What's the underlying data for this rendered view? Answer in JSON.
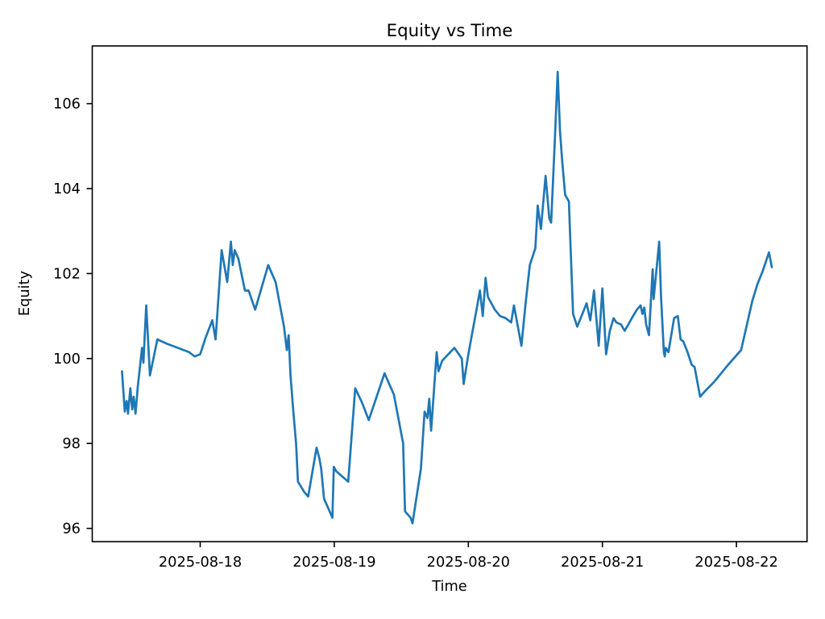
{
  "chart_data": {
    "type": "line",
    "title": "Equity vs Time",
    "xlabel": "Time",
    "ylabel": "Equity",
    "line_color": "#1f77b4",
    "background_color": "#ffffff",
    "grid": false,
    "legend": null,
    "y_ticks": [
      96,
      98,
      100,
      102,
      104,
      106
    ],
    "x_ticks": [
      "2025-08-18",
      "2025-08-19",
      "2025-08-20",
      "2025-08-21",
      "2025-08-22"
    ],
    "ylim": [
      95.7,
      107.4
    ],
    "xlim": [
      "2025-08-17T04:40",
      "2025-08-22T12:40"
    ],
    "series": [
      {
        "name": "Equity",
        "points": [
          [
            "2025-08-17T10:00",
            99.7
          ],
          [
            "2025-08-17T10:30",
            98.75
          ],
          [
            "2025-08-17T10:50",
            99.0
          ],
          [
            "2025-08-17T11:05",
            98.7
          ],
          [
            "2025-08-17T11:30",
            99.3
          ],
          [
            "2025-08-17T11:50",
            98.8
          ],
          [
            "2025-08-17T12:05",
            99.1
          ],
          [
            "2025-08-17T12:25",
            98.7
          ],
          [
            "2025-08-17T12:50",
            99.35
          ],
          [
            "2025-08-17T13:15",
            99.85
          ],
          [
            "2025-08-17T13:35",
            100.25
          ],
          [
            "2025-08-17T13:50",
            99.9
          ],
          [
            "2025-08-17T14:20",
            101.25
          ],
          [
            "2025-08-17T15:00",
            99.6
          ],
          [
            "2025-08-17T16:20",
            100.45
          ],
          [
            "2025-08-17T18:00",
            100.35
          ],
          [
            "2025-08-17T20:00",
            100.25
          ],
          [
            "2025-08-17T22:00",
            100.15
          ],
          [
            "2025-08-17T23:00",
            100.05
          ],
          [
            "2025-08-18T00:00",
            100.1
          ],
          [
            "2025-08-18T01:00",
            100.5
          ],
          [
            "2025-08-18T02:10",
            100.9
          ],
          [
            "2025-08-18T02:45",
            100.45
          ],
          [
            "2025-08-18T03:50",
            102.55
          ],
          [
            "2025-08-18T04:50",
            101.8
          ],
          [
            "2025-08-18T05:30",
            102.75
          ],
          [
            "2025-08-18T05:50",
            102.2
          ],
          [
            "2025-08-18T06:10",
            102.55
          ],
          [
            "2025-08-18T06:50",
            102.35
          ],
          [
            "2025-08-18T08:00",
            101.6
          ],
          [
            "2025-08-18T08:40",
            101.6
          ],
          [
            "2025-08-18T09:50",
            101.15
          ],
          [
            "2025-08-18T12:10",
            102.2
          ],
          [
            "2025-08-18T13:30",
            101.8
          ],
          [
            "2025-08-18T15:00",
            100.75
          ],
          [
            "2025-08-18T15:30",
            100.2
          ],
          [
            "2025-08-18T15:50",
            100.55
          ],
          [
            "2025-08-18T16:10",
            99.6
          ],
          [
            "2025-08-18T16:40",
            98.75
          ],
          [
            "2025-08-18T17:10",
            98.0
          ],
          [
            "2025-08-18T17:30",
            97.1
          ],
          [
            "2025-08-18T18:40",
            96.85
          ],
          [
            "2025-08-18T19:20",
            96.75
          ],
          [
            "2025-08-18T20:50",
            97.9
          ],
          [
            "2025-08-18T21:20",
            97.65
          ],
          [
            "2025-08-18T21:40",
            97.4
          ],
          [
            "2025-08-18T22:10",
            96.7
          ],
          [
            "2025-08-18T23:40",
            96.25
          ],
          [
            "2025-08-18T23:55",
            97.45
          ],
          [
            "2025-08-19T00:20",
            97.35
          ],
          [
            "2025-08-19T02:30",
            97.1
          ],
          [
            "2025-08-19T03:45",
            99.3
          ],
          [
            "2025-08-19T05:00",
            98.95
          ],
          [
            "2025-08-19T06:10",
            98.55
          ],
          [
            "2025-08-19T09:00",
            99.65
          ],
          [
            "2025-08-19T10:40",
            99.15
          ],
          [
            "2025-08-19T12:20",
            98.0
          ],
          [
            "2025-08-19T12:40",
            96.4
          ],
          [
            "2025-08-19T13:40",
            96.25
          ],
          [
            "2025-08-19T14:00",
            96.12
          ],
          [
            "2025-08-19T15:30",
            97.4
          ],
          [
            "2025-08-19T16:10",
            98.75
          ],
          [
            "2025-08-19T16:40",
            98.6
          ],
          [
            "2025-08-19T17:00",
            99.05
          ],
          [
            "2025-08-19T17:20",
            98.3
          ],
          [
            "2025-08-19T18:20",
            100.15
          ],
          [
            "2025-08-19T18:40",
            99.7
          ],
          [
            "2025-08-19T19:20",
            99.95
          ],
          [
            "2025-08-19T21:30",
            100.25
          ],
          [
            "2025-08-19T22:50",
            100.0
          ],
          [
            "2025-08-19T23:10",
            99.4
          ],
          [
            "2025-08-20T00:00",
            100.1
          ],
          [
            "2025-08-20T01:40",
            101.3
          ],
          [
            "2025-08-20T02:05",
            101.6
          ],
          [
            "2025-08-20T02:35",
            101.0
          ],
          [
            "2025-08-20T03:05",
            101.9
          ],
          [
            "2025-08-20T03:30",
            101.45
          ],
          [
            "2025-08-20T04:45",
            101.15
          ],
          [
            "2025-08-20T05:40",
            101.0
          ],
          [
            "2025-08-20T06:40",
            100.95
          ],
          [
            "2025-08-20T07:40",
            100.85
          ],
          [
            "2025-08-20T08:10",
            101.25
          ],
          [
            "2025-08-20T09:30",
            100.3
          ],
          [
            "2025-08-20T10:15",
            101.3
          ],
          [
            "2025-08-20T11:00",
            102.2
          ],
          [
            "2025-08-20T12:00",
            102.6
          ],
          [
            "2025-08-20T12:25",
            103.6
          ],
          [
            "2025-08-20T13:00",
            103.05
          ],
          [
            "2025-08-20T13:50",
            104.3
          ],
          [
            "2025-08-20T14:30",
            103.3
          ],
          [
            "2025-08-20T14:50",
            103.2
          ],
          [
            "2025-08-20T15:30",
            105.2
          ],
          [
            "2025-08-20T16:00",
            106.75
          ],
          [
            "2025-08-20T16:25",
            105.35
          ],
          [
            "2025-08-20T16:50",
            104.6
          ],
          [
            "2025-08-20T17:20",
            103.85
          ],
          [
            "2025-08-20T18:00",
            103.7
          ],
          [
            "2025-08-20T18:45",
            101.05
          ],
          [
            "2025-08-20T19:30",
            100.75
          ],
          [
            "2025-08-20T21:10",
            101.3
          ],
          [
            "2025-08-20T21:50",
            100.9
          ],
          [
            "2025-08-20T22:30",
            101.6
          ],
          [
            "2025-08-20T23:20",
            100.3
          ],
          [
            "2025-08-21T00:00",
            101.65
          ],
          [
            "2025-08-21T00:40",
            100.1
          ],
          [
            "2025-08-21T01:20",
            100.65
          ],
          [
            "2025-08-21T02:00",
            100.95
          ],
          [
            "2025-08-21T02:30",
            100.85
          ],
          [
            "2025-08-21T03:20",
            100.8
          ],
          [
            "2025-08-21T04:00",
            100.65
          ],
          [
            "2025-08-21T05:30",
            101.0
          ],
          [
            "2025-08-21T06:10",
            101.15
          ],
          [
            "2025-08-21T06:50",
            101.25
          ],
          [
            "2025-08-21T07:10",
            101.05
          ],
          [
            "2025-08-21T07:30",
            101.2
          ],
          [
            "2025-08-21T07:50",
            100.8
          ],
          [
            "2025-08-21T08:20",
            100.55
          ],
          [
            "2025-08-21T09:00",
            102.1
          ],
          [
            "2025-08-21T09:10",
            101.4
          ],
          [
            "2025-08-21T10:10",
            102.75
          ],
          [
            "2025-08-21T10:30",
            101.45
          ],
          [
            "2025-08-21T11:00",
            100.15
          ],
          [
            "2025-08-21T11:10",
            100.05
          ],
          [
            "2025-08-21T11:20",
            100.25
          ],
          [
            "2025-08-21T11:50",
            100.15
          ],
          [
            "2025-08-21T12:50",
            100.95
          ],
          [
            "2025-08-21T13:30",
            101.0
          ],
          [
            "2025-08-21T14:00",
            100.45
          ],
          [
            "2025-08-21T14:30",
            100.4
          ],
          [
            "2025-08-21T15:15",
            100.15
          ],
          [
            "2025-08-21T16:00",
            99.85
          ],
          [
            "2025-08-21T16:30",
            99.8
          ],
          [
            "2025-08-21T17:30",
            99.1
          ],
          [
            "2025-08-21T18:30",
            99.25
          ],
          [
            "2025-08-21T20:00",
            99.45
          ],
          [
            "2025-08-21T22:30",
            99.85
          ],
          [
            "2025-08-22T00:50",
            100.2
          ],
          [
            "2025-08-22T02:50",
            101.35
          ],
          [
            "2025-08-22T03:45",
            101.75
          ],
          [
            "2025-08-22T04:40",
            102.05
          ],
          [
            "2025-08-22T05:50",
            102.5
          ],
          [
            "2025-08-22T06:20",
            102.15
          ]
        ]
      }
    ]
  }
}
